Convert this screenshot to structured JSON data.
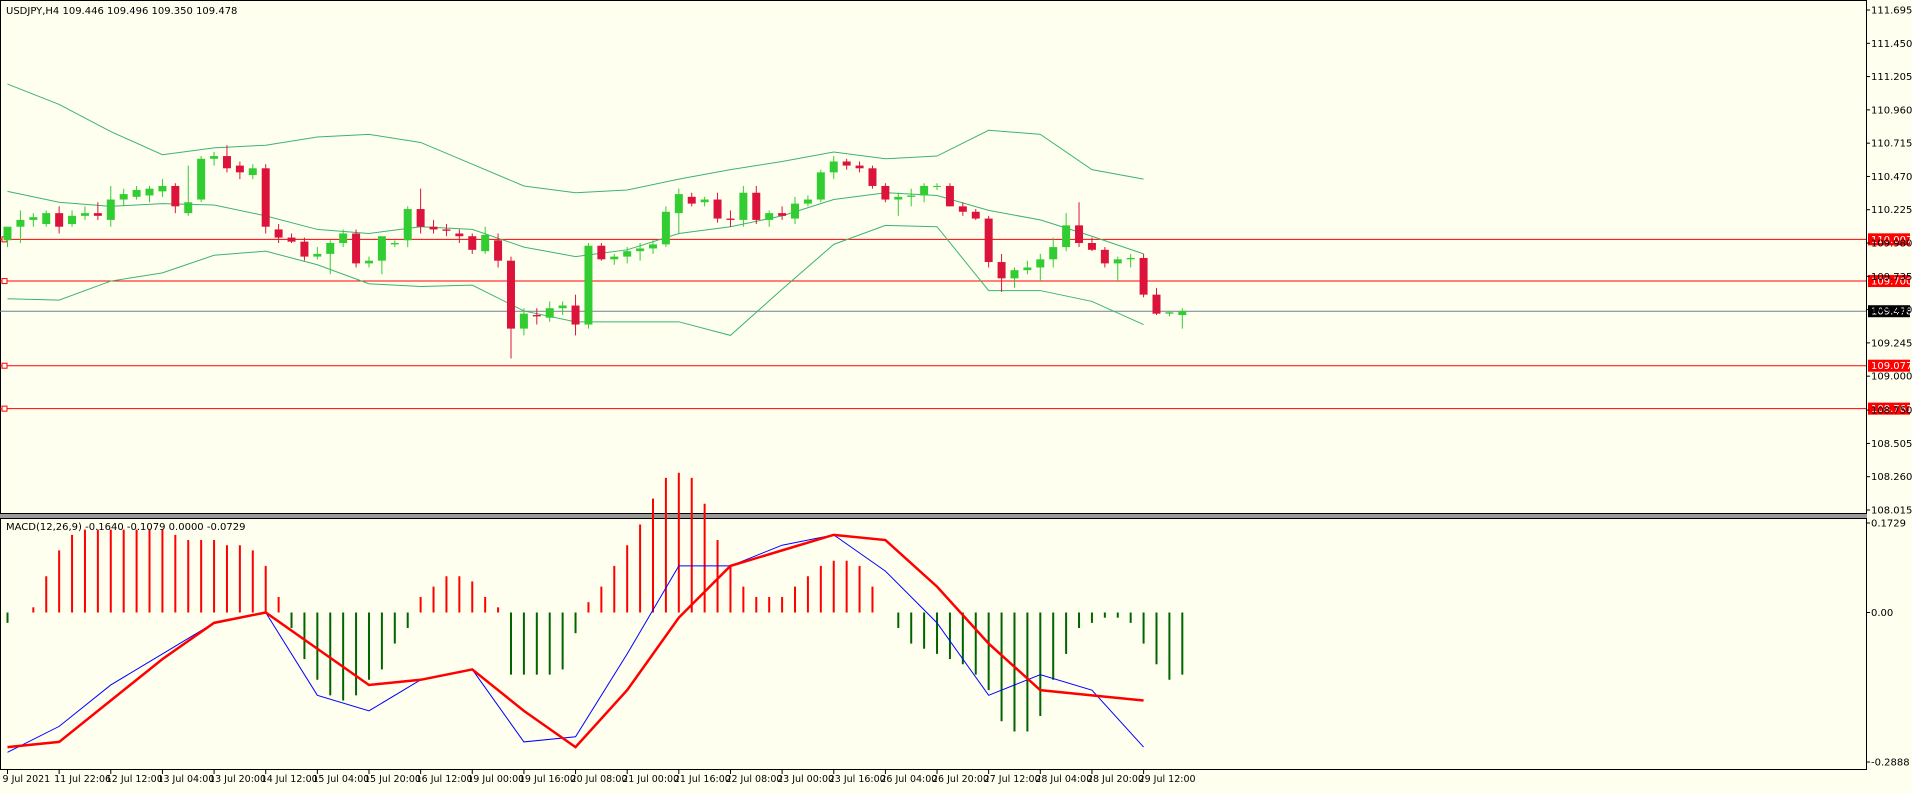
{
  "window": {
    "symbol_header": "USDJPY,H4  109.446 109.496 109.350 109.478",
    "macd_header": "MACD(12,26,9) -0.1640 -0.1079 0.0000 -0.0729"
  },
  "colors": {
    "background": "#fffff0",
    "bull": "#32cd32",
    "bear": "#dc143c",
    "bands": "#3cb371",
    "hline": "#ff0000",
    "current_price": "#708090",
    "macd_up": "#ff0000",
    "macd_down": "#006400",
    "macd_line": "#0000ff",
    "signal_line": "#ff0000"
  },
  "chart_data": [
    {
      "type": "candlestick",
      "symbol": "USDJPY",
      "timeframe": "H4",
      "ylim": [
        108.015,
        111.695
      ],
      "yticks": [
        "111.695",
        "111.450",
        "111.205",
        "110.960",
        "110.715",
        "110.470",
        "110.225",
        "109.980",
        "109.735",
        "109.490",
        "109.245",
        "109.000",
        "108.750",
        "108.505",
        "108.260",
        "108.015"
      ],
      "xticks": [
        {
          "index": 0,
          "label": "9 Jul 2021"
        },
        {
          "index": 4,
          "label": "11 Jul 22:06"
        },
        {
          "index": 8,
          "label": "12 Jul 12:00"
        },
        {
          "index": 12,
          "label": "13 Jul 04:00"
        },
        {
          "index": 16,
          "label": "13 Jul 20:00"
        },
        {
          "index": 20,
          "label": "14 Jul 12:00"
        },
        {
          "index": 24,
          "label": "15 Jul 04:00"
        },
        {
          "index": 28,
          "label": "15 Jul 20:00"
        },
        {
          "index": 32,
          "label": "16 Jul 12:00"
        },
        {
          "index": 36,
          "label": "19 Jul 00:00"
        },
        {
          "index": 40,
          "label": "19 Jul 16:00"
        },
        {
          "index": 44,
          "label": "20 Jul 08:00"
        },
        {
          "index": 48,
          "label": "21 Jul 00:00"
        },
        {
          "index": 52,
          "label": "21 Jul 16:00"
        },
        {
          "index": 56,
          "label": "22 Jul 08:00"
        },
        {
          "index": 60,
          "label": "23 Jul 00:00"
        },
        {
          "index": 64,
          "label": "23 Jul 16:00"
        },
        {
          "index": 68,
          "label": "26 Jul 04:00"
        },
        {
          "index": 72,
          "label": "26 Jul 20:00"
        },
        {
          "index": 76,
          "label": "27 Jul 12:00"
        },
        {
          "index": 80,
          "label": "28 Jul 04:00"
        },
        {
          "index": 84,
          "label": "28 Jul 20:00"
        },
        {
          "index": 88,
          "label": "29 Jul 12:00"
        }
      ],
      "candles": [
        [
          110.0,
          110.1,
          109.95,
          110.1
        ],
        [
          110.1,
          110.22,
          109.98,
          110.15
        ],
        [
          110.15,
          110.2,
          110.1,
          110.17
        ],
        [
          110.12,
          110.22,
          110.1,
          110.2
        ],
        [
          110.2,
          110.25,
          110.05,
          110.1
        ],
        [
          110.12,
          110.22,
          110.1,
          110.18
        ],
        [
          110.18,
          110.25,
          110.15,
          110.2
        ],
        [
          110.2,
          110.28,
          110.15,
          110.18
        ],
        [
          110.15,
          110.4,
          110.1,
          110.3
        ],
        [
          110.3,
          110.38,
          110.25,
          110.34
        ],
        [
          110.32,
          110.4,
          110.3,
          110.37
        ],
        [
          110.33,
          110.4,
          110.28,
          110.38
        ],
        [
          110.36,
          110.45,
          110.32,
          110.4
        ],
        [
          110.4,
          110.42,
          110.2,
          110.25
        ],
        [
          110.2,
          110.55,
          110.18,
          110.28
        ],
        [
          110.3,
          110.62,
          110.28,
          110.6
        ],
        [
          110.6,
          110.65,
          110.55,
          110.62
        ],
        [
          110.62,
          110.7,
          110.5,
          110.53
        ],
        [
          110.55,
          110.58,
          110.45,
          110.5
        ],
        [
          110.48,
          110.56,
          110.45,
          110.53
        ],
        [
          110.53,
          110.56,
          110.05,
          110.1
        ],
        [
          110.08,
          110.12,
          109.98,
          110.02
        ],
        [
          110.02,
          110.05,
          109.98,
          109.99
        ],
        [
          109.99,
          110.02,
          109.85,
          109.88
        ],
        [
          109.88,
          109.95,
          109.86,
          109.9
        ],
        [
          109.9,
          110.0,
          109.75,
          109.98
        ],
        [
          109.98,
          110.08,
          109.95,
          110.05
        ],
        [
          110.05,
          110.08,
          109.8,
          109.83
        ],
        [
          109.83,
          109.88,
          109.8,
          109.85
        ],
        [
          109.85,
          110.0,
          109.75,
          110.03
        ],
        [
          109.97,
          110.0,
          109.95,
          109.98
        ],
        [
          110.0,
          110.25,
          109.95,
          110.23
        ],
        [
          110.23,
          110.38,
          110.05,
          110.1
        ],
        [
          110.1,
          110.15,
          110.05,
          110.08
        ],
        [
          110.08,
          110.12,
          110.03,
          110.07
        ],
        [
          110.05,
          110.08,
          109.98,
          110.03
        ],
        [
          110.03,
          110.05,
          109.9,
          109.93
        ],
        [
          109.92,
          110.1,
          109.9,
          110.04
        ],
        [
          110.0,
          110.05,
          109.8,
          109.85
        ],
        [
          109.85,
          109.88,
          109.13,
          109.35
        ],
        [
          109.35,
          109.5,
          109.3,
          109.46
        ],
        [
          109.45,
          109.5,
          109.38,
          109.44
        ],
        [
          109.43,
          109.55,
          109.4,
          109.5
        ],
        [
          109.5,
          109.55,
          109.45,
          109.52
        ],
        [
          109.52,
          109.6,
          109.3,
          109.38
        ],
        [
          109.38,
          109.98,
          109.35,
          109.96
        ],
        [
          109.96,
          109.98,
          109.85,
          109.86
        ],
        [
          109.86,
          109.9,
          109.82,
          109.88
        ],
        [
          109.88,
          109.95,
          109.83,
          109.92
        ],
        [
          109.92,
          109.98,
          109.85,
          109.94
        ],
        [
          109.94,
          110.0,
          109.9,
          109.97
        ],
        [
          109.97,
          110.25,
          109.95,
          110.21
        ],
        [
          110.2,
          110.38,
          110.05,
          110.34
        ],
        [
          110.32,
          110.35,
          110.25,
          110.27
        ],
        [
          110.28,
          110.32,
          110.25,
          110.3
        ],
        [
          110.3,
          110.35,
          110.13,
          110.16
        ],
        [
          110.16,
          110.22,
          110.1,
          110.15
        ],
        [
          110.15,
          110.4,
          110.1,
          110.35
        ],
        [
          110.35,
          110.4,
          110.12,
          110.15
        ],
        [
          110.15,
          110.22,
          110.1,
          110.2
        ],
        [
          110.2,
          110.25,
          110.15,
          110.18
        ],
        [
          110.16,
          110.32,
          110.12,
          110.27
        ],
        [
          110.27,
          110.33,
          110.25,
          110.3
        ],
        [
          110.3,
          110.52,
          110.28,
          110.5
        ],
        [
          110.5,
          110.62,
          110.45,
          110.58
        ],
        [
          110.58,
          110.6,
          110.52,
          110.55
        ],
        [
          110.55,
          110.58,
          110.5,
          110.53
        ],
        [
          110.53,
          110.55,
          110.38,
          110.4
        ],
        [
          110.4,
          110.42,
          110.28,
          110.3
        ],
        [
          110.3,
          110.35,
          110.18,
          110.32
        ],
        [
          110.32,
          110.38,
          110.25,
          110.33
        ],
        [
          110.33,
          110.42,
          110.28,
          110.4
        ],
        [
          110.4,
          110.42,
          110.37,
          110.4
        ],
        [
          110.4,
          110.42,
          110.25,
          110.25
        ],
        [
          110.25,
          110.28,
          110.18,
          110.21
        ],
        [
          110.21,
          110.23,
          110.15,
          110.16
        ],
        [
          110.16,
          110.18,
          109.8,
          109.84
        ],
        [
          109.84,
          109.9,
          109.62,
          109.72
        ],
        [
          109.72,
          109.8,
          109.65,
          109.78
        ],
        [
          109.78,
          109.85,
          109.75,
          109.8
        ],
        [
          109.8,
          109.9,
          109.7,
          109.86
        ],
        [
          109.86,
          110.02,
          109.8,
          109.95
        ],
        [
          109.95,
          110.2,
          109.92,
          110.11
        ],
        [
          110.11,
          110.28,
          109.95,
          109.98
        ],
        [
          109.98,
          110.02,
          109.92,
          109.93
        ],
        [
          109.93,
          109.95,
          109.8,
          109.83
        ],
        [
          109.83,
          109.88,
          109.7,
          109.86
        ],
        [
          109.86,
          109.9,
          109.8,
          109.87
        ],
        [
          109.87,
          109.9,
          109.58,
          109.6
        ],
        [
          109.6,
          109.65,
          109.45,
          109.46
        ],
        [
          109.46,
          109.48,
          109.44,
          109.47
        ],
        [
          109.45,
          109.5,
          109.35,
          109.48
        ]
      ],
      "bollinger": {
        "upper": [
          [
            0,
            111.15
          ],
          [
            4,
            111.0
          ],
          [
            8,
            110.8
          ],
          [
            12,
            110.63
          ],
          [
            16,
            110.68
          ],
          [
            20,
            110.7
          ],
          [
            24,
            110.76
          ],
          [
            28,
            110.78
          ],
          [
            32,
            110.72
          ],
          [
            36,
            110.56
          ],
          [
            40,
            110.4
          ],
          [
            44,
            110.35
          ],
          [
            48,
            110.37
          ],
          [
            52,
            110.45
          ],
          [
            56,
            110.52
          ],
          [
            60,
            110.58
          ],
          [
            64,
            110.65
          ],
          [
            68,
            110.6
          ],
          [
            72,
            110.62
          ],
          [
            76,
            110.81
          ],
          [
            80,
            110.78
          ],
          [
            84,
            110.52
          ],
          [
            88,
            110.45
          ]
        ],
        "middle": [
          [
            0,
            110.36
          ],
          [
            4,
            110.28
          ],
          [
            8,
            110.25
          ],
          [
            12,
            110.27
          ],
          [
            16,
            110.26
          ],
          [
            20,
            110.18
          ],
          [
            24,
            110.08
          ],
          [
            28,
            110.05
          ],
          [
            32,
            110.1
          ],
          [
            36,
            110.08
          ],
          [
            40,
            109.95
          ],
          [
            44,
            109.88
          ],
          [
            48,
            109.93
          ],
          [
            52,
            110.05
          ],
          [
            56,
            110.1
          ],
          [
            60,
            110.18
          ],
          [
            64,
            110.3
          ],
          [
            68,
            110.35
          ],
          [
            72,
            110.33
          ],
          [
            76,
            110.22
          ],
          [
            80,
            110.15
          ],
          [
            84,
            110.03
          ],
          [
            88,
            109.9
          ]
        ],
        "lower": [
          [
            0,
            109.57
          ],
          [
            4,
            109.56
          ],
          [
            8,
            109.7
          ],
          [
            12,
            109.76
          ],
          [
            16,
            109.89
          ],
          [
            20,
            109.92
          ],
          [
            24,
            109.82
          ],
          [
            28,
            109.68
          ],
          [
            32,
            109.66
          ],
          [
            36,
            109.67
          ],
          [
            40,
            109.48
          ],
          [
            44,
            109.4
          ],
          [
            48,
            109.4
          ],
          [
            52,
            109.4
          ],
          [
            56,
            109.3
          ],
          [
            60,
            109.64
          ],
          [
            64,
            109.97
          ],
          [
            68,
            110.11
          ],
          [
            72,
            110.1
          ],
          [
            76,
            109.63
          ],
          [
            80,
            109.63
          ],
          [
            84,
            109.55
          ],
          [
            88,
            109.38
          ]
        ]
      },
      "hlines": [
        {
          "price": 110.007,
          "label": "110.007",
          "style": "red"
        },
        {
          "price": 109.7,
          "label": "109.700",
          "style": "red"
        },
        {
          "price": 109.478,
          "label": "109.478",
          "style": "current"
        },
        {
          "price": 109.077,
          "label": "109.077",
          "style": "red"
        },
        {
          "price": 108.761,
          "label": "108.761",
          "style": "red"
        }
      ]
    },
    {
      "type": "macd",
      "params": "12,26,9",
      "ylim": [
        -0.2888,
        0.1729
      ],
      "yticks": [
        "0.1729",
        "0.00",
        "-0.2888"
      ],
      "histogram": [
        -0.02,
        0.0,
        0.01,
        0.07,
        0.12,
        0.15,
        0.16,
        0.16,
        0.16,
        0.16,
        0.16,
        0.16,
        0.16,
        0.15,
        0.14,
        0.14,
        0.14,
        0.13,
        0.13,
        0.12,
        0.09,
        0.03,
        -0.03,
        -0.09,
        -0.13,
        -0.16,
        -0.17,
        -0.16,
        -0.13,
        -0.11,
        -0.06,
        -0.03,
        0.03,
        0.05,
        0.07,
        0.07,
        0.06,
        0.03,
        0.01,
        -0.12,
        -0.12,
        -0.12,
        -0.12,
        -0.11,
        -0.04,
        0.02,
        0.05,
        0.09,
        0.13,
        0.17,
        0.22,
        0.26,
        0.27,
        0.26,
        0.21,
        0.14,
        0.09,
        0.05,
        0.03,
        0.03,
        0.03,
        0.05,
        0.07,
        0.09,
        0.1,
        0.1,
        0.09,
        0.05,
        0.0,
        -0.03,
        -0.06,
        -0.07,
        -0.08,
        -0.09,
        -0.1,
        -0.12,
        -0.15,
        -0.21,
        -0.23,
        -0.23,
        -0.2,
        -0.13,
        -0.08,
        -0.03,
        -0.02,
        -0.01,
        -0.01,
        -0.02,
        -0.06,
        -0.1,
        -0.13,
        -0.12
      ],
      "macd_line": [
        [
          0,
          -0.27
        ],
        [
          4,
          -0.22
        ],
        [
          8,
          -0.14
        ],
        [
          12,
          -0.08
        ],
        [
          16,
          -0.02
        ],
        [
          20,
          0.0
        ],
        [
          24,
          -0.16
        ],
        [
          28,
          -0.19
        ],
        [
          32,
          -0.13
        ],
        [
          36,
          -0.11
        ],
        [
          40,
          -0.25
        ],
        [
          44,
          -0.24
        ],
        [
          48,
          -0.08
        ],
        [
          52,
          0.09
        ],
        [
          56,
          0.09
        ],
        [
          60,
          0.13
        ],
        [
          64,
          0.15
        ],
        [
          68,
          0.08
        ],
        [
          72,
          -0.02
        ],
        [
          76,
          -0.16
        ],
        [
          80,
          -0.12
        ],
        [
          84,
          -0.15
        ],
        [
          88,
          -0.26
        ]
      ],
      "signal_line": [
        [
          0,
          -0.26
        ],
        [
          4,
          -0.25
        ],
        [
          8,
          -0.17
        ],
        [
          12,
          -0.09
        ],
        [
          16,
          -0.02
        ],
        [
          20,
          0.0
        ],
        [
          24,
          -0.07
        ],
        [
          28,
          -0.14
        ],
        [
          32,
          -0.13
        ],
        [
          36,
          -0.11
        ],
        [
          40,
          -0.19
        ],
        [
          44,
          -0.26
        ],
        [
          48,
          -0.15
        ],
        [
          52,
          -0.01
        ],
        [
          56,
          0.09
        ],
        [
          60,
          0.12
        ],
        [
          64,
          0.15
        ],
        [
          68,
          0.14
        ],
        [
          72,
          0.05
        ],
        [
          76,
          -0.06
        ],
        [
          80,
          -0.15
        ],
        [
          84,
          -0.16
        ],
        [
          88,
          -0.17
        ]
      ]
    }
  ]
}
